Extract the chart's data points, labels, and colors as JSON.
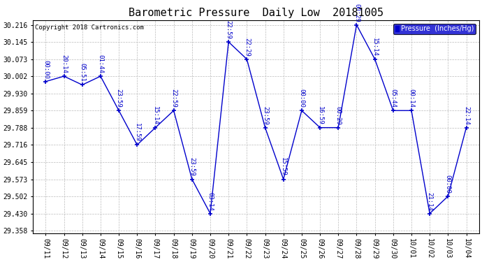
{
  "title": "Barometric Pressure  Daily Low  20181005",
  "copyright": "Copyright 2018 Cartronics.com",
  "legend_label": "Pressure  (Inches/Hg)",
  "dates": [
    "09/11",
    "09/12",
    "09/13",
    "09/14",
    "09/15",
    "09/16",
    "09/17",
    "09/18",
    "09/19",
    "09/20",
    "09/21",
    "09/22",
    "09/23",
    "09/24",
    "09/25",
    "09/26",
    "09/27",
    "09/28",
    "09/29",
    "09/30",
    "10/01",
    "10/02",
    "10/03",
    "10/04"
  ],
  "values": [
    29.98,
    30.002,
    29.966,
    30.002,
    29.859,
    29.716,
    29.788,
    29.859,
    29.573,
    29.43,
    30.145,
    30.073,
    29.788,
    29.573,
    29.859,
    29.788,
    29.788,
    30.216,
    30.073,
    29.859,
    29.859,
    29.43,
    29.502,
    29.788
  ],
  "annotations": [
    "00:00",
    "20:14",
    "05:51",
    "01:44",
    "23:59",
    "17:59",
    "15:14",
    "22:59",
    "23:59",
    "03:14",
    "22:59",
    "22:29",
    "23:59",
    "15:59",
    "00:00",
    "16:59",
    "00:29",
    "00:29",
    "15:14",
    "05:44",
    "00:14",
    "21:14",
    "00:00",
    "22:14"
  ],
  "ylim_min": 29.358,
  "ylim_max": 30.216,
  "yticks": [
    30.216,
    30.145,
    30.073,
    30.002,
    29.93,
    29.859,
    29.788,
    29.716,
    29.645,
    29.573,
    29.502,
    29.43,
    29.358
  ],
  "line_color": "#0000CC",
  "marker_color": "#0000CC",
  "title_fontsize": 11,
  "annotation_fontsize": 6.5,
  "copyright_fontsize": 6.5,
  "tick_fontsize": 7,
  "bg_color": "#ffffff",
  "grid_color": "#bbbbbb",
  "fig_width": 6.9,
  "fig_height": 3.75,
  "dpi": 100
}
